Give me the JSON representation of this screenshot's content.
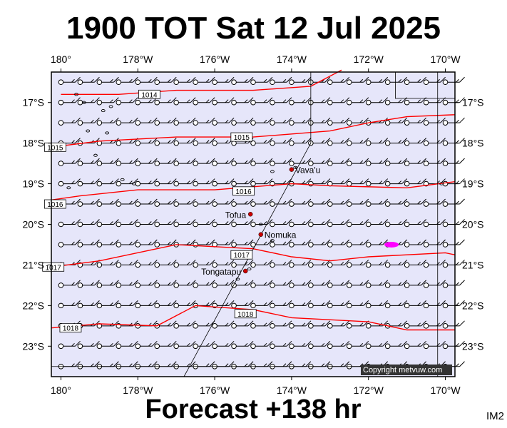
{
  "title": "1900 TOT Sat 12 Jul 2025",
  "footer": "Forecast +138 hr",
  "signature": "IM2",
  "copyright": "Copyright metvuw.com",
  "colors": {
    "ocean": "#e6e6fa",
    "isobar": "#ff0000",
    "wind_barb": "#000000",
    "town": "#cc0000",
    "rain": "#ff00ff"
  },
  "lon_labels": [
    "180°",
    "178°W",
    "176°W",
    "174°W",
    "172°W",
    "170°W"
  ],
  "lat_labels": [
    "17°S",
    "18°S",
    "19°S",
    "20°S",
    "21°S",
    "22°S",
    "23°S"
  ],
  "map_extent": {
    "lon_min": 179.75,
    "lon_max": 190.25,
    "lat_min": -23.75,
    "lat_max": -16.25
  },
  "lon_ticks": [
    180,
    182,
    184,
    186,
    188,
    190
  ],
  "lat_ticks": [
    -17,
    -18,
    -19,
    -20,
    -21,
    -22,
    -23
  ],
  "isobars": [
    {
      "label": "1014",
      "points": [
        [
          180,
          -16.8
        ],
        [
          181.5,
          -16.8
        ],
        [
          183,
          -16.7
        ],
        [
          185,
          -16.7
        ],
        [
          186.5,
          -16.6
        ],
        [
          187,
          -16.35
        ],
        [
          187.3,
          -16.2
        ]
      ]
    },
    {
      "label": "1015",
      "points": [
        [
          179.75,
          -18.1
        ],
        [
          181,
          -17.95
        ],
        [
          183,
          -17.85
        ],
        [
          185,
          -17.85
        ],
        [
          187,
          -17.7
        ],
        [
          188,
          -17.5
        ],
        [
          189,
          -17.35
        ],
        [
          190.25,
          -17.3
        ]
      ]
    },
    {
      "label": "1016",
      "points": [
        [
          179.75,
          -19.4
        ],
        [
          180.5,
          -19.3
        ],
        [
          182,
          -19.15
        ],
        [
          184,
          -19.15
        ],
        [
          186,
          -19.0
        ],
        [
          187,
          -19.05
        ],
        [
          189,
          -19.1
        ],
        [
          190.25,
          -18.95
        ]
      ]
    },
    {
      "label": "1017",
      "points": [
        [
          179.75,
          -21.05
        ],
        [
          181,
          -20.9
        ],
        [
          183,
          -20.5
        ],
        [
          185,
          -20.6
        ],
        [
          186,
          -20.8
        ],
        [
          187,
          -20.9
        ],
        [
          188,
          -20.8
        ],
        [
          190,
          -20.7
        ],
        [
          190.25,
          -20.75
        ]
      ]
    },
    {
      "label": "1018",
      "points": [
        [
          179.75,
          -22.55
        ],
        [
          181,
          -22.45
        ],
        [
          182.5,
          -22.5
        ],
        [
          183.5,
          -22.0
        ],
        [
          185,
          -22.1
        ],
        [
          186,
          -22.3
        ],
        [
          188,
          -22.4
        ],
        [
          189,
          -22.6
        ],
        [
          190.25,
          -22.6
        ]
      ]
    }
  ],
  "isobar_labels": [
    {
      "label": "1014",
      "lon": 182.3,
      "lat": -16.8
    },
    {
      "label": "1015",
      "lon": 184.7,
      "lat": -17.85
    },
    {
      "label": "1015",
      "lon": 179.85,
      "lat": -18.1
    },
    {
      "label": "1016",
      "lon": 184.75,
      "lat": -19.18
    },
    {
      "label": "1016",
      "lon": 179.85,
      "lat": -19.5
    },
    {
      "label": "1017",
      "lon": 184.7,
      "lat": -20.75
    },
    {
      "label": "1017",
      "lon": 179.8,
      "lat": -21.05
    },
    {
      "label": "1018",
      "lon": 184.8,
      "lat": -22.2
    },
    {
      "label": "1018",
      "lon": 180.25,
      "lat": -22.55
    }
  ],
  "places": [
    {
      "name": "Vava'u",
      "lon": 186.0,
      "lat": -18.65
    },
    {
      "name": "Tofua",
      "lon": 184.93,
      "lat": -19.75
    },
    {
      "name": "Nomuka",
      "lon": 185.2,
      "lat": -20.25
    },
    {
      "name": "Tongatapu",
      "lon": 184.8,
      "lat": -21.15
    }
  ],
  "wind": {
    "direction": "E",
    "style": "barb"
  }
}
